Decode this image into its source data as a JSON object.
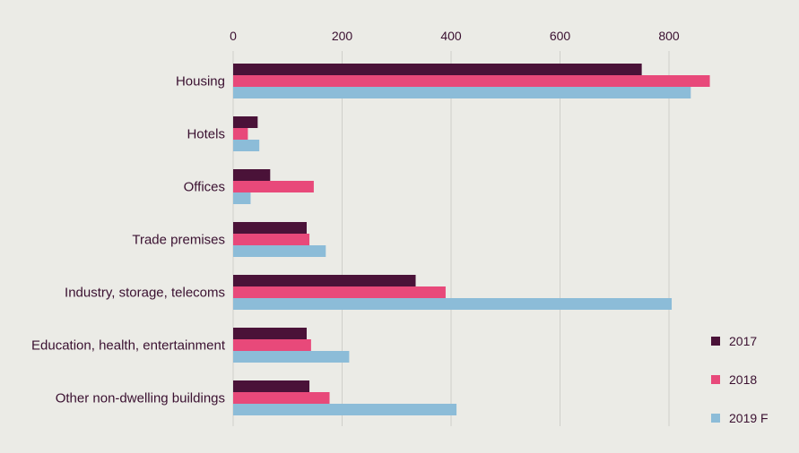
{
  "chart_data": {
    "type": "bar",
    "orientation": "horizontal",
    "categories": [
      "Housing",
      "Hotels",
      "Offices",
      "Trade premises",
      "Industry, storage, telecoms",
      "Education, health, entertainment",
      "Other non-dwelling buildings"
    ],
    "series": [
      {
        "name": "2017",
        "color": "#4a1238",
        "values": [
          750,
          45,
          68,
          135,
          335,
          135,
          140
        ]
      },
      {
        "name": "2018",
        "color": "#e8497a",
        "values": [
          875,
          27,
          148,
          140,
          390,
          143,
          177
        ]
      },
      {
        "name": "2019 F",
        "color": "#8cbcd8",
        "values": [
          840,
          48,
          32,
          170,
          805,
          213,
          410
        ]
      }
    ],
    "xaxis": {
      "min": 0,
      "max": 880,
      "ticks": [
        0,
        200,
        400,
        600,
        800
      ],
      "position": "top"
    },
    "grid": true,
    "legend_position": "bottom-right"
  }
}
